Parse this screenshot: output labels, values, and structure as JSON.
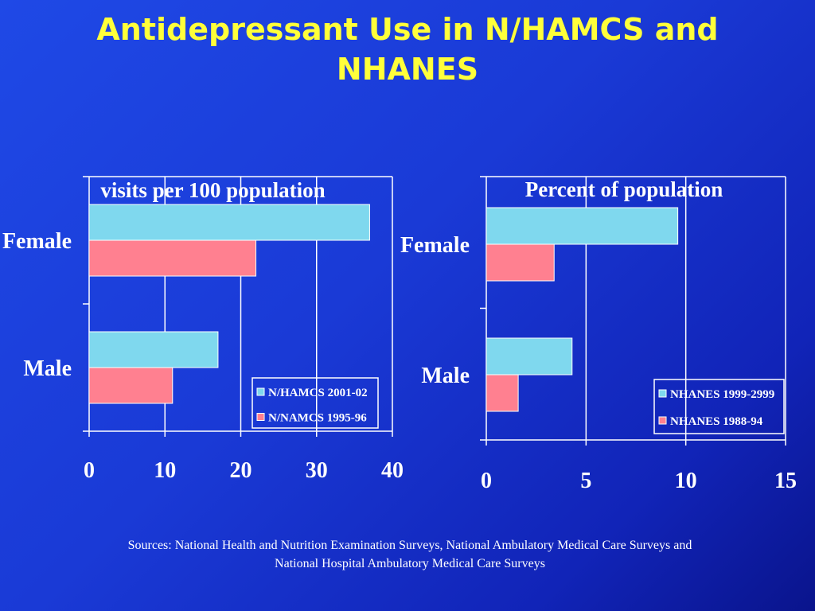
{
  "title": {
    "line1": "Antidepressant Use in N/HAMCS and",
    "line2": "NHANES"
  },
  "colors": {
    "background": "#1a3ad6",
    "title": "#ffff3a",
    "bar_a": "#7fd8ee",
    "bar_b": "#ff8090",
    "axis": "#ffffff"
  },
  "chart_data": [
    {
      "type": "bar",
      "orientation": "horizontal",
      "title": "visits per 100 population",
      "categories": [
        "Female",
        "Male"
      ],
      "series": [
        {
          "name": "N/HAMCS 2001-02",
          "values": [
            37,
            17
          ]
        },
        {
          "name": "N/NAMCS 1995-96",
          "values": [
            22,
            11
          ]
        }
      ],
      "xlim": [
        0,
        40
      ],
      "xticks": [
        "0",
        "10",
        "20",
        "30",
        "40"
      ],
      "grid": true,
      "legend_position": "bottom-right"
    },
    {
      "type": "bar",
      "orientation": "horizontal",
      "title": "Percent of population",
      "categories": [
        "Female",
        "Male"
      ],
      "series": [
        {
          "name": "NHANES 1999-2999",
          "values": [
            9.6,
            4.3
          ]
        },
        {
          "name": "NHANES 1988-94",
          "values": [
            3.4,
            1.6
          ]
        }
      ],
      "xlim": [
        0,
        15
      ],
      "xticks": [
        "0",
        "5",
        "10",
        "15"
      ],
      "grid": true,
      "legend_position": "bottom-right"
    }
  ],
  "sources": {
    "line1": "Sources:  National Health and Nutrition Examination Surveys, National Ambulatory Medical Care Surveys and",
    "line2": "National Hospital Ambulatory Medical Care Surveys"
  }
}
